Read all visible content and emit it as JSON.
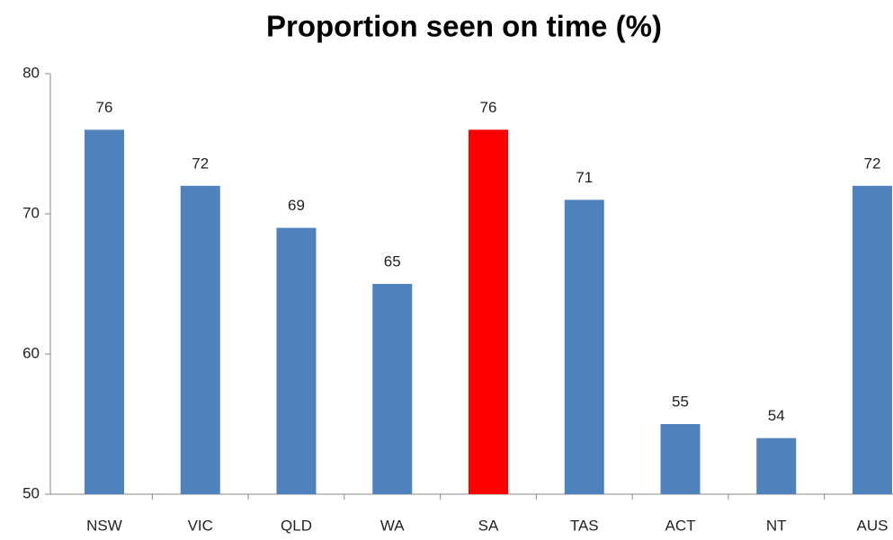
{
  "chart_data": {
    "type": "bar",
    "title": "Proportion seen on time (%)",
    "categories": [
      "NSW",
      "VIC",
      "QLD",
      "WA",
      "SA",
      "TAS",
      "ACT",
      "NT",
      "AUS"
    ],
    "values": [
      76,
      72,
      69,
      65,
      76,
      71,
      55,
      54,
      72
    ],
    "colors": [
      "#4f81bd",
      "#4f81bd",
      "#4f81bd",
      "#4f81bd",
      "#ff0000",
      "#4f81bd",
      "#4f81bd",
      "#4f81bd",
      "#4f81bd"
    ],
    "ylim": [
      50,
      80
    ],
    "yticks": [
      50,
      60,
      70,
      80
    ],
    "grid": false
  }
}
